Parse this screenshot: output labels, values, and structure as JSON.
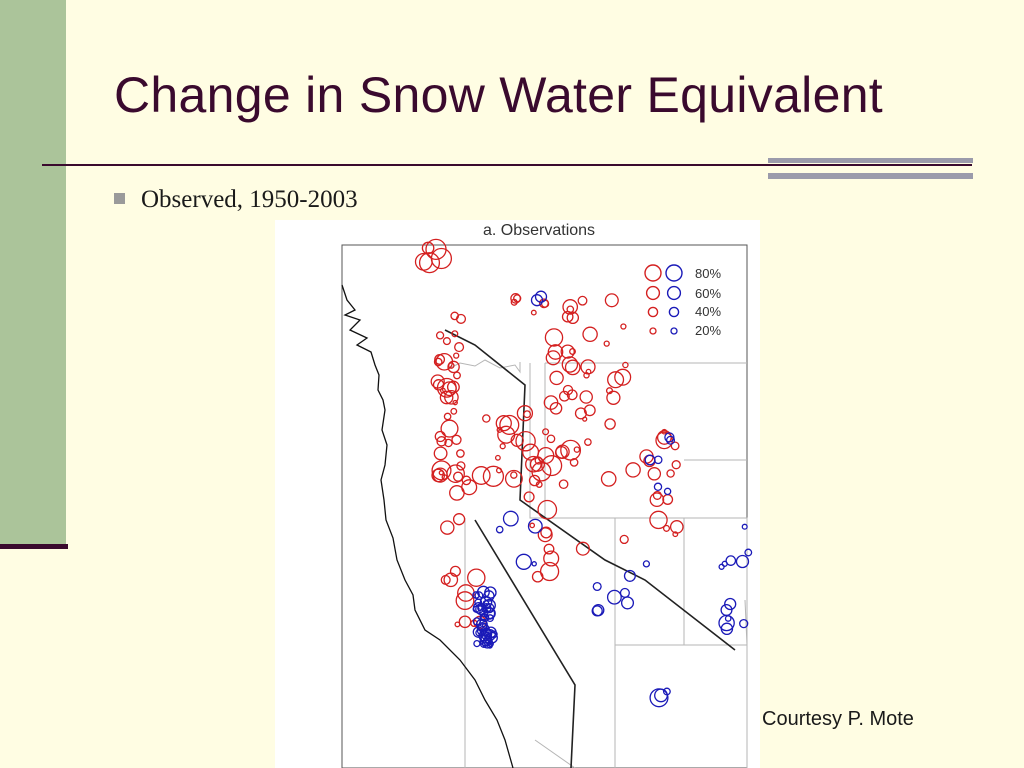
{
  "slide": {
    "title": "Change in Snow Water Equivalent",
    "bullet_text": "Observed, 1950-2003",
    "credit": "Courtesy P. Mote"
  },
  "map": {
    "panel_title": "a. Observations",
    "legend_labels": [
      "80%",
      "60%",
      "40%",
      "20%"
    ],
    "colors": {
      "decrease": "#d42020",
      "increase": "#1a1ab8"
    }
  }
}
